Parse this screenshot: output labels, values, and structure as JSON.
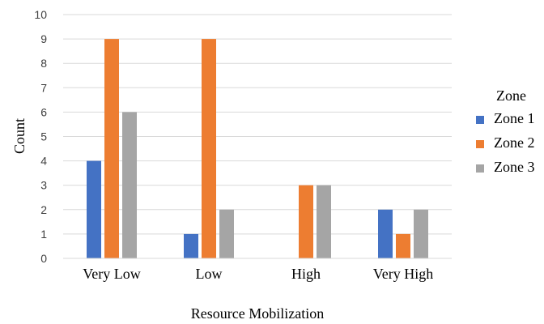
{
  "chart_data": {
    "type": "bar",
    "title": "",
    "xlabel": "Resource Mobilization",
    "ylabel": "Count",
    "ylim": [
      0,
      10
    ],
    "yticks": [
      0,
      1,
      2,
      3,
      4,
      5,
      6,
      7,
      8,
      9,
      10
    ],
    "grid": true,
    "legend_position": "right",
    "legend_title": "Zone",
    "categories": [
      "Very Low",
      "Low",
      "High",
      "Very High"
    ],
    "series": [
      {
        "name": "Zone 1",
        "color": "#4472C4",
        "values": [
          4,
          1,
          0,
          2
        ]
      },
      {
        "name": "Zone 2",
        "color": "#ED7D31",
        "values": [
          9,
          9,
          3,
          1
        ]
      },
      {
        "name": "Zone 3",
        "color": "#A5A5A5",
        "values": [
          6,
          2,
          3,
          2
        ]
      }
    ]
  }
}
